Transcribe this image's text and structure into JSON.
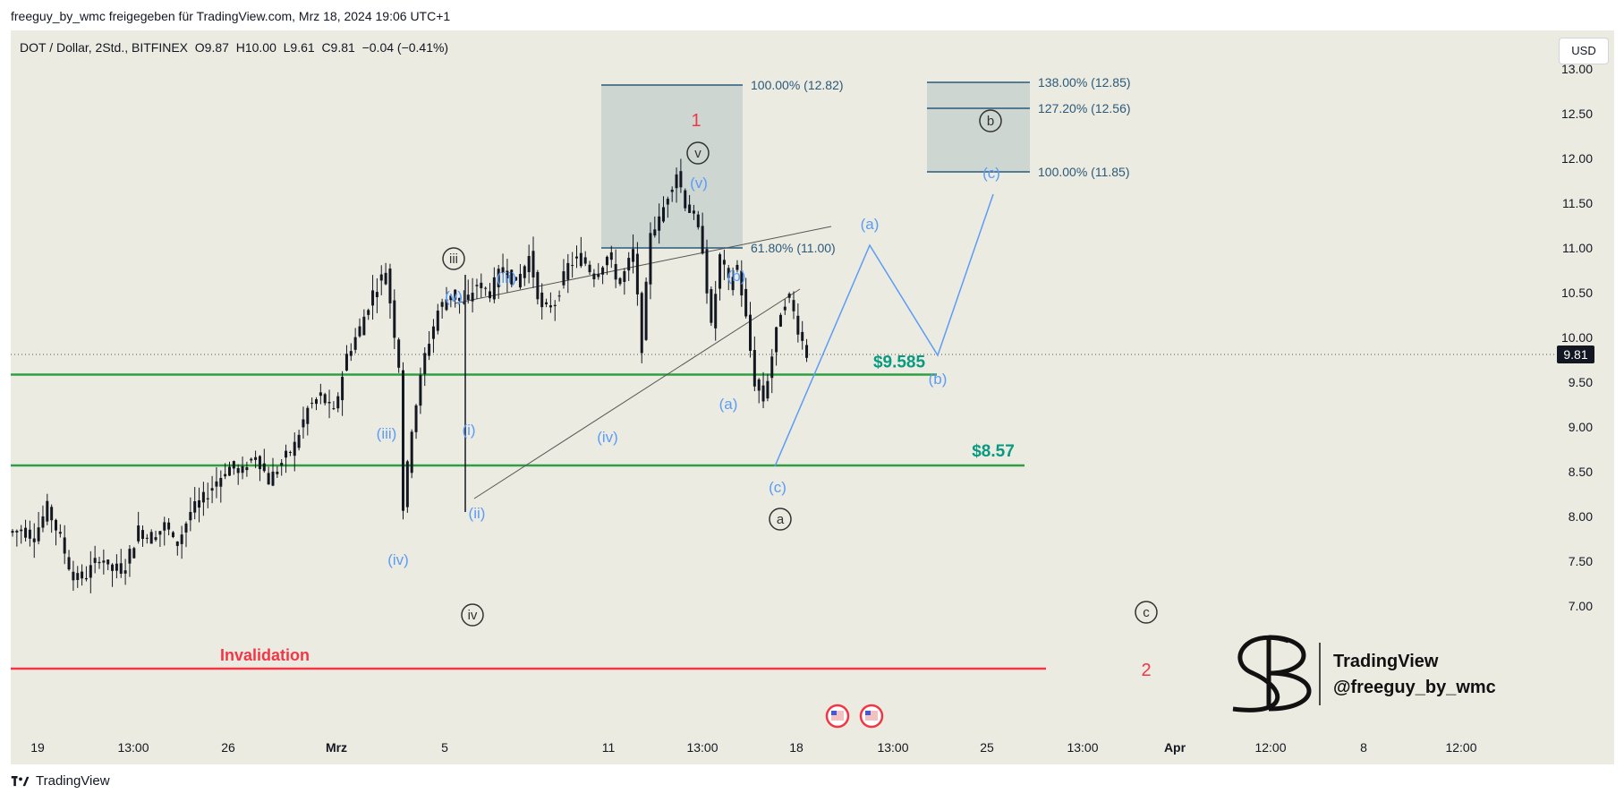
{
  "header": {
    "published": "freeguy_by_wmc freigegeben für TradingView.com, Mrz 18, 2024 19:06 UTC+1",
    "symbol_line": "DOT / Dollar, 2Std., BITFINEX  O9.87  H10.00  L9.61  C9.81  −0.04 (−0.41%)",
    "currency_button": "USD"
  },
  "footer": {
    "brand": "TradingView"
  },
  "watermark": {
    "line1": "TradingView",
    "line2": "@freeguy_by_wmc"
  },
  "colors": {
    "background": "#ecebe1",
    "support": "#2ea043",
    "invalidation": "#f23645",
    "wave_blue": "#5b9cf6",
    "wave_dark": "#333333",
    "fib_box": "#b7c4c4",
    "fib_line": "#2a5a7a",
    "support_text": "#089981"
  },
  "chart_data": {
    "type": "candlestick",
    "symbol": "DOT / Dollar",
    "timeframe": "2Std.",
    "exchange": "BITFINEX",
    "ohlc": {
      "open": 9.87,
      "high": 10.0,
      "low": 9.61,
      "close": 9.81,
      "change": -0.04,
      "change_pct": -0.41
    },
    "y_ticks": [
      "13.00",
      "12.50",
      "12.00",
      "11.50",
      "11.00",
      "10.50",
      "10.00",
      "9.50",
      "9.00",
      "8.50",
      "8.00",
      "7.50",
      "7.00"
    ],
    "ylim": [
      6.7,
      13.3
    ],
    "x_ticks": [
      "19",
      "13:00",
      "26",
      "Mrz",
      "5",
      "11",
      "13:00",
      "18",
      "13:00",
      "25",
      "13:00",
      "Apr",
      "12:00",
      "8",
      "12:00"
    ],
    "current_price_label": "9.81",
    "price_path": [
      [
        0,
        7.82
      ],
      [
        3,
        7.85
      ],
      [
        6,
        7.78
      ],
      [
        9,
        8.1
      ],
      [
        12,
        7.75
      ],
      [
        15,
        7.3
      ],
      [
        18,
        7.35
      ],
      [
        21,
        7.55
      ],
      [
        24,
        7.4
      ],
      [
        27,
        7.45
      ],
      [
        30,
        7.85
      ],
      [
        33,
        7.75
      ],
      [
        36,
        7.9
      ],
      [
        39,
        7.7
      ],
      [
        42,
        8.05
      ],
      [
        45,
        8.2
      ],
      [
        48,
        8.4
      ],
      [
        51,
        8.55
      ],
      [
        54,
        8.5
      ],
      [
        57,
        8.7
      ],
      [
        60,
        8.4
      ],
      [
        63,
        8.6
      ],
      [
        66,
        8.8
      ],
      [
        69,
        9.2
      ],
      [
        72,
        9.35
      ],
      [
        75,
        9.15
      ],
      [
        78,
        9.8
      ],
      [
        81,
        10.1
      ],
      [
        84,
        10.5
      ],
      [
        87,
        10.75
      ],
      [
        90,
        9.7
      ],
      [
        91,
        8.1
      ],
      [
        93,
        9.0
      ],
      [
        96,
        9.8
      ],
      [
        99,
        10.3
      ],
      [
        102,
        10.5
      ],
      [
        105,
        10.35
      ],
      [
        108,
        10.6
      ],
      [
        111,
        10.5
      ],
      [
        114,
        10.8
      ],
      [
        117,
        10.6
      ],
      [
        120,
        10.9
      ],
      [
        123,
        10.3
      ],
      [
        126,
        10.4
      ],
      [
        129,
        10.8
      ],
      [
        132,
        10.9
      ],
      [
        135,
        10.7
      ],
      [
        138,
        10.9
      ],
      [
        141,
        10.6
      ],
      [
        144,
        10.95
      ],
      [
        146,
        9.9
      ],
      [
        148,
        11.2
      ],
      [
        150,
        11.3
      ],
      [
        152,
        11.6
      ],
      [
        154,
        11.85
      ],
      [
        156,
        11.5
      ],
      [
        158,
        11.35
      ],
      [
        160,
        11.0
      ],
      [
        162,
        10.1
      ],
      [
        164,
        10.9
      ],
      [
        166,
        10.6
      ],
      [
        168,
        10.8
      ],
      [
        170,
        10.2
      ],
      [
        172,
        9.5
      ],
      [
        174,
        9.3
      ],
      [
        176,
        9.8
      ],
      [
        178,
        10.3
      ],
      [
        180,
        10.45
      ],
      [
        182,
        10.1
      ],
      [
        184,
        9.81
      ]
    ],
    "projection": [
      [
        177,
        9.35
      ],
      [
        193,
        11.4
      ],
      [
        211,
        10.35
      ],
      [
        228,
        11.9
      ]
    ],
    "levels": [
      {
        "price": 9.585,
        "label": "$9.585"
      },
      {
        "price": 8.57,
        "label": "$8.57"
      },
      {
        "price": 7.3,
        "label": "Invalidation"
      }
    ],
    "fib_boxes": [
      {
        "lines": [
          {
            "price": 12.82,
            "label": "100.00% (12.82)"
          },
          {
            "price": 11.0,
            "label": "61.80% (11.00)"
          }
        ]
      },
      {
        "lines": [
          {
            "price": 12.85,
            "label": "138.00% (12.85)"
          },
          {
            "price": 12.56,
            "label": "127.20% (12.56)"
          },
          {
            "price": 11.85,
            "label": "100.00% (11.85)"
          }
        ]
      }
    ],
    "wave_labels": {
      "blue": [
        "(v)",
        "(iii)",
        "(v)",
        "(iii)",
        "(i)",
        "(ii)",
        "(iv)",
        "(iv)",
        "(v)",
        "(b)",
        "(a)",
        "(c)",
        "(a)",
        "(b)",
        "(c)"
      ],
      "circled": [
        "iii",
        "iv",
        "v",
        "a",
        "b",
        "c"
      ],
      "red": [
        "1",
        "2"
      ]
    }
  }
}
